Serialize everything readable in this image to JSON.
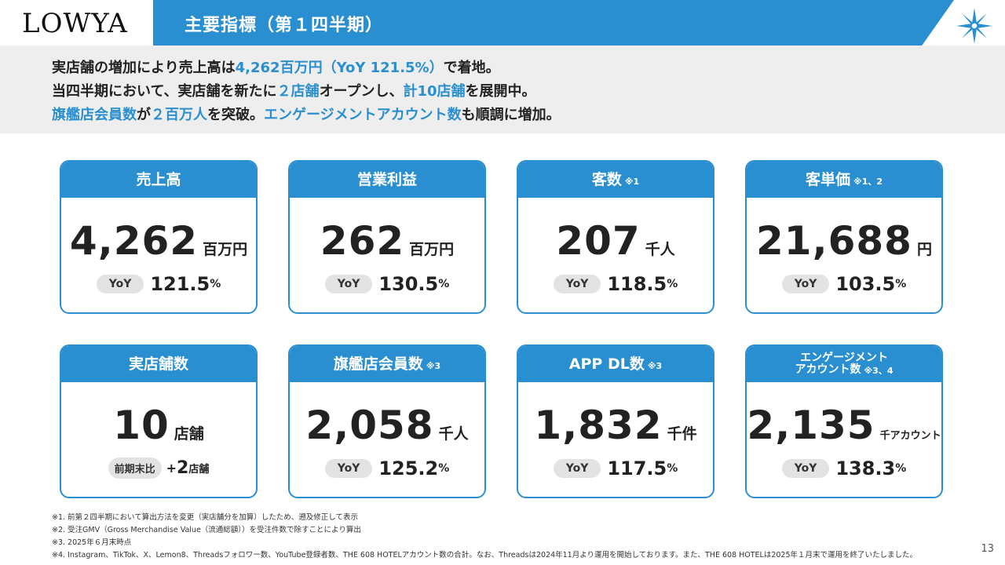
{
  "header": {
    "logo": "LOWYA",
    "title": "主要指標（第１四半期）"
  },
  "summary": {
    "line1": [
      {
        "text": "実店舗の増加により売上高は",
        "hl": false
      },
      {
        "text": "4,262百万円（YoY 121.5%）",
        "hl": true
      },
      {
        "text": "で着地。",
        "hl": false
      }
    ],
    "line2": [
      {
        "text": "当四半期において、実店舗を新たに",
        "hl": false
      },
      {
        "text": "２店舗",
        "hl": true
      },
      {
        "text": "オープンし、",
        "hl": false
      },
      {
        "text": "計10店舗",
        "hl": true
      },
      {
        "text": "を展開中。",
        "hl": false
      }
    ],
    "line3": [
      {
        "text": "旗艦店会員数",
        "hl": true
      },
      {
        "text": "が",
        "hl": false
      },
      {
        "text": "２百万人",
        "hl": true
      },
      {
        "text": "を突破。",
        "hl": false
      },
      {
        "text": "エンゲージメントアカウント数",
        "hl": true
      },
      {
        "text": "も順調に増加。",
        "hl": false
      }
    ]
  },
  "cards": {
    "sales": {
      "title": "売上高",
      "note": "",
      "value": "4,262",
      "unit": "百万円",
      "yoy_label": "YoY",
      "yoy": "121.5",
      "pct": "%"
    },
    "op": {
      "title": "営業利益",
      "note": "",
      "value": "262",
      "unit": "百万円",
      "yoy_label": "YoY",
      "yoy": "130.5",
      "pct": "%"
    },
    "customers": {
      "title": "客数",
      "note": "※1",
      "value": "207",
      "unit": "千人",
      "yoy_label": "YoY",
      "yoy": "118.5",
      "pct": "%"
    },
    "aov": {
      "title": "客単価",
      "note": "※1、2",
      "value": "21,688",
      "unit": "円",
      "yoy_label": "YoY",
      "yoy": "103.5",
      "pct": "%"
    },
    "stores": {
      "title": "実店舗数",
      "note": "",
      "value": "10",
      "unit": "店舗",
      "compare_label": "前期末比",
      "plus": "+",
      "plus_num": "2",
      "plus_unit": "店舗"
    },
    "members": {
      "title": "旗艦店会員数",
      "note": "※3",
      "value": "2,058",
      "unit": "千人",
      "yoy_label": "YoY",
      "yoy": "125.2",
      "pct": "%"
    },
    "app": {
      "title": "APP DL数",
      "note": "※3",
      "value": "1,832",
      "unit": "千件",
      "yoy_label": "YoY",
      "yoy": "117.5",
      "pct": "%"
    },
    "engage": {
      "title_line1": "エンゲージメント",
      "title_line2": "アカウント数",
      "note": "※3、4",
      "value": "2,135",
      "unit": "千アカウント",
      "yoy_label": "YoY",
      "yoy": "138.3",
      "pct": "%"
    }
  },
  "footnotes": [
    "※1. 前第２四半期において算出方法を変更（実店舗分を加算）したため、遡及修正して表示",
    "※2. 受注GMV（Gross Merchandise Value（流通総額））を受注件数で除すことにより算出",
    "※3. 2025年６月末時点",
    "※4. Instagram、TikTok、X、Lemon8、Threadsフォロワー数、YouTube登録者数、THE 608 HOTELアカウント数の合計。なお、Threadsは2024年11月より運用を開始しております。また、THE 608 HOTELは2025年１月末で運用を終了いたしました。"
  ],
  "page_number": "13",
  "colors": {
    "accent": "#2a8fd0",
    "summary_bg": "#eeeeee",
    "pill_bg": "#e3e3e3"
  },
  "icons": [
    "compass-star-icon"
  ]
}
